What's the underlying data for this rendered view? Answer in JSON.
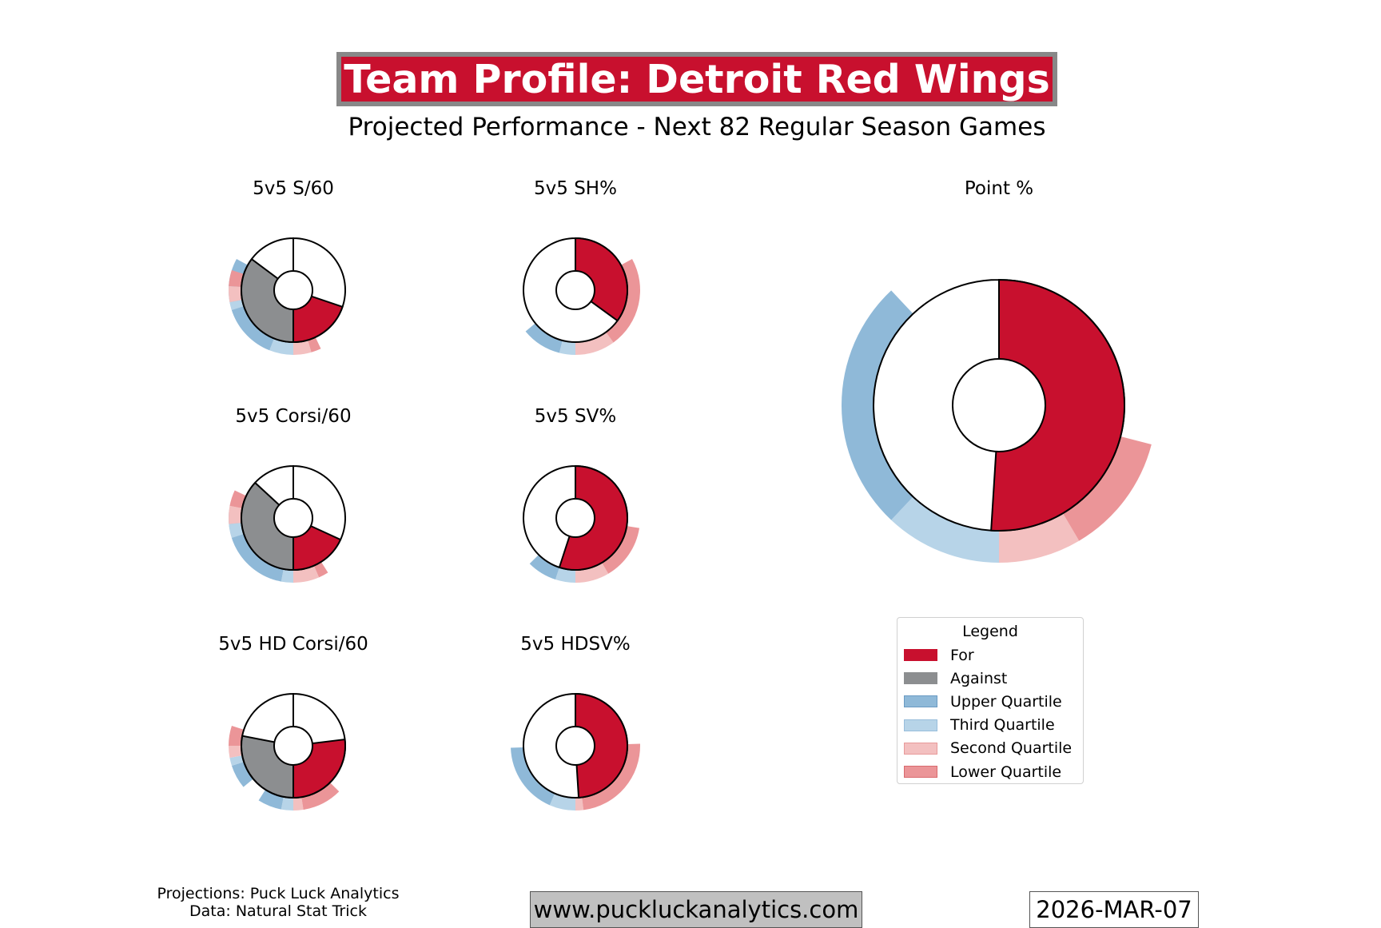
{
  "header": {
    "title": "Team Profile: Detroit Red Wings",
    "subtitle": "Projected Performance - Next 82 Regular Season Games"
  },
  "colors": {
    "for": "#c8102e",
    "against": "#8c8e90",
    "upper_quartile": "#8fb9d8",
    "third_quartile": "#b7d4e8",
    "second_quartile": "#f3c0c0",
    "lower_quartile": "#eb9598",
    "title_border": "#888888"
  },
  "chart_data": [
    {
      "type": "donut",
      "title": "5v5 S/60",
      "for_share": 0.36,
      "against_share": 0.64,
      "quartile_bands": [
        {
          "side": "for",
          "quartiles": [
            0.27,
            0.06,
            0.045,
            0.025
          ]
        },
        {
          "side": "against",
          "quartiles": [
            0.06,
            0.02,
            0.04,
            0.04
          ]
        }
      ]
    },
    {
      "type": "donut",
      "title": "5v5 SH%",
      "for_share": 0.35,
      "against_share": 0.65,
      "quartile_bands": [
        {
          "side": "for",
          "quartiles": [
            0.1,
            0.04,
            0.1,
            0.23
          ]
        }
      ]
    },
    {
      "type": "donut",
      "title": "5v5 Corsi/60",
      "for_share": 0.33,
      "against_share": 0.67,
      "quartile_bands": [
        {
          "side": "for",
          "quartiles": [
            0.24,
            0.03,
            0.065,
            0.025
          ]
        },
        {
          "side": "against",
          "quartiles": [
            0.16,
            0.035,
            0.045,
            0.04
          ]
        }
      ]
    },
    {
      "type": "donut",
      "title": "5v5 SV%",
      "for_share": 0.55,
      "against_share": 0.45,
      "quartile_bands": [
        {
          "side": "for",
          "quartiles": [
            0.075,
            0.05,
            0.085,
            0.14
          ]
        }
      ]
    },
    {
      "type": "donut",
      "title": "5v5 HD Corsi/60",
      "for_share": 0.49,
      "against_share": 0.51,
      "quartile_bands": [
        {
          "side": "for",
          "quartiles": [
            0.06,
            0.03,
            0.025,
            0.1
          ]
        },
        {
          "side": "against",
          "quartiles": [
            0.06,
            0.02,
            0.03,
            0.05
          ]
        }
      ]
    },
    {
      "type": "donut",
      "title": "5v5 HDSV%",
      "for_share": 0.49,
      "against_share": 0.51,
      "quartile_bands": [
        {
          "side": "for",
          "quartiles": [
            0.18,
            0.065,
            0.02,
            0.235
          ]
        }
      ]
    },
    {
      "type": "donut",
      "title": "Point %",
      "for_share": 0.51,
      "against_share": 0.49,
      "quartile_bands": [
        {
          "side": "for",
          "quartiles": [
            0.26,
            0.12,
            0.085,
            0.125
          ]
        }
      ]
    }
  ],
  "legend": {
    "title": "Legend",
    "items": [
      {
        "label": "For",
        "color": "#c8102e",
        "border": "#c8102e"
      },
      {
        "label": "Against",
        "color": "#8c8e90",
        "border": "#8c8e90"
      },
      {
        "label": "Upper Quartile",
        "color": "#8fb9d8",
        "border": "#6a9bc3"
      },
      {
        "label": "Third Quartile",
        "color": "#b7d4e8",
        "border": "#98bedc"
      },
      {
        "label": "Second Quartile",
        "color": "#f3c0c0",
        "border": "#e89a9a"
      },
      {
        "label": "Lower Quartile",
        "color": "#eb9598",
        "border": "#d96a6e"
      }
    ]
  },
  "footer": {
    "credits_line1": "Projections: Puck Luck Analytics",
    "credits_line2": "Data: Natural Stat Trick",
    "url": "www.puckluckanalytics.com",
    "date": "2026-MAR-07"
  }
}
